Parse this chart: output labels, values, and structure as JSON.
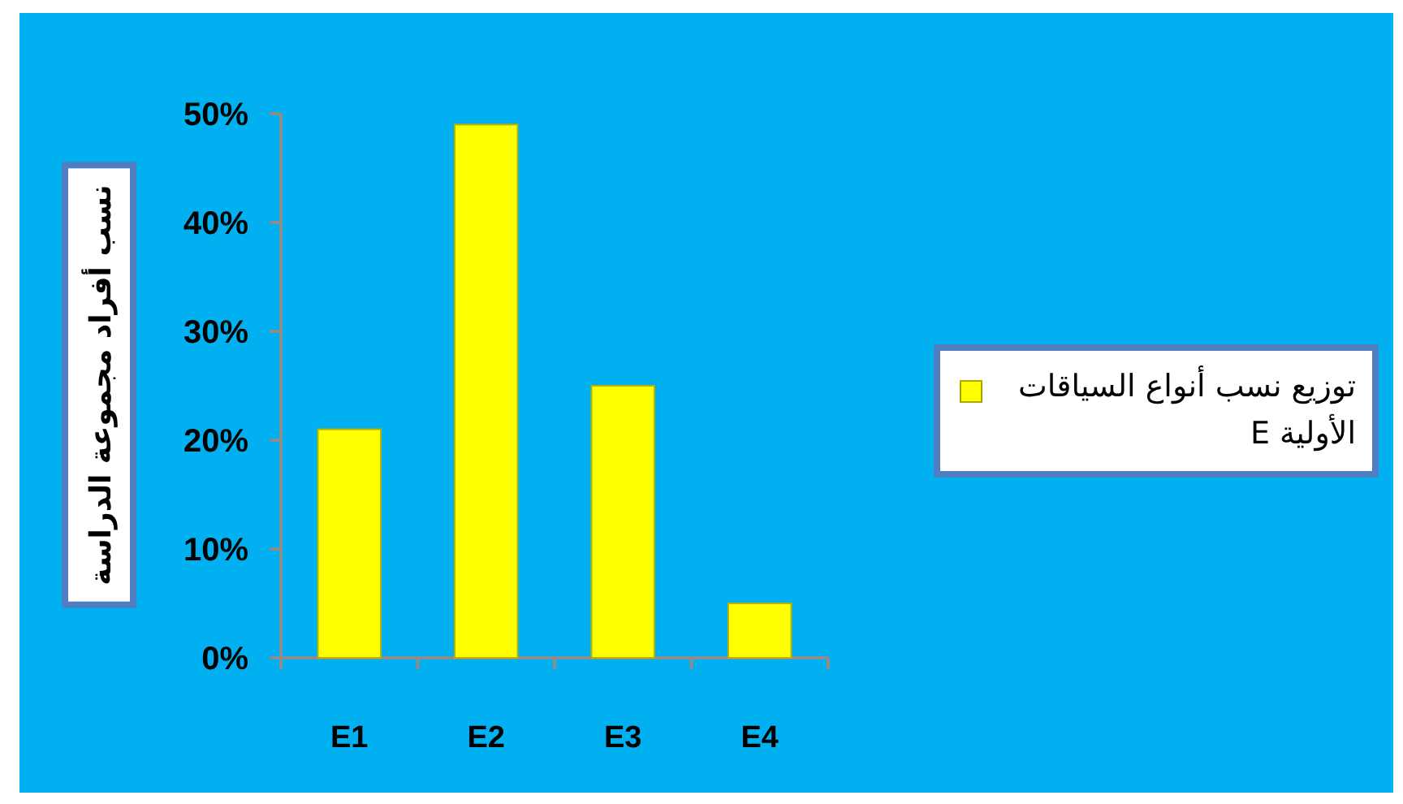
{
  "chart_data": {
    "type": "bar",
    "ylabel": "نسب أفراد مجموعة الدراسة",
    "categories": [
      "E1",
      "E2",
      "E3",
      "E4"
    ],
    "series": [
      {
        "name": "توزيع نسب أنواع السياقات الأولية E",
        "color": "#ffff00",
        "values": [
          21,
          49,
          25,
          5
        ]
      }
    ],
    "ylim": [
      0,
      50
    ],
    "yticks": [
      {
        "value": 0,
        "label": "0%"
      },
      {
        "value": 10,
        "label": "10%"
      },
      {
        "value": 20,
        "label": "20%"
      },
      {
        "value": 30,
        "label": "30%"
      },
      {
        "value": 40,
        "label": "40%"
      },
      {
        "value": 50,
        "label": "50%"
      }
    ],
    "legend": "right"
  }
}
